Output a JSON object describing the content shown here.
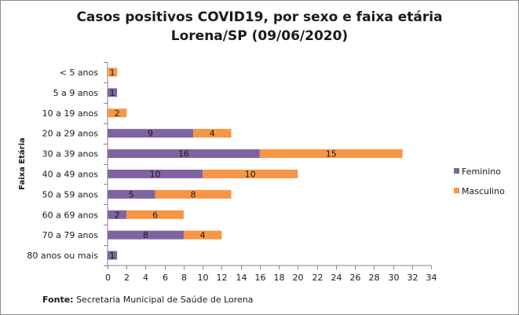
{
  "title_line1": "Casos positivos  COVID19, por sexo e faixa etária",
  "title_line2": "Lorena/SP (09/06/2020)",
  "source_prefix": "Fonte:",
  "source_text": " Secretaria Municipal de Saúde de Lorena",
  "colors": {
    "feminino": "#8064a2",
    "masculino": "#f79646"
  },
  "chart_data": {
    "type": "bar",
    "orientation": "horizontal",
    "stacked": true,
    "ylabel": "Faixa Etária",
    "xlabel": "",
    "xlim": [
      0,
      34
    ],
    "xticks": [
      0,
      2,
      4,
      6,
      8,
      10,
      12,
      14,
      16,
      18,
      20,
      22,
      24,
      26,
      28,
      30,
      32,
      34
    ],
    "grid": false,
    "legend_position": "right",
    "categories": [
      "< 5 anos",
      "5 a 9 anos",
      "10 a 19 anos",
      "20 a 29 anos",
      "30 a 39 anos",
      "40 a 49 anos",
      "50 a 59 anos",
      "60 a 69 anos",
      "70 a 79 anos",
      "80 anos ou mais"
    ],
    "series": [
      {
        "name": "Feminino",
        "color": "#8064a2",
        "values": [
          0,
          1,
          0,
          9,
          16,
          10,
          5,
          2,
          8,
          1
        ]
      },
      {
        "name": "Masculino",
        "color": "#f79646",
        "values": [
          1,
          0,
          2,
          4,
          15,
          10,
          8,
          6,
          4,
          0
        ]
      }
    ]
  }
}
